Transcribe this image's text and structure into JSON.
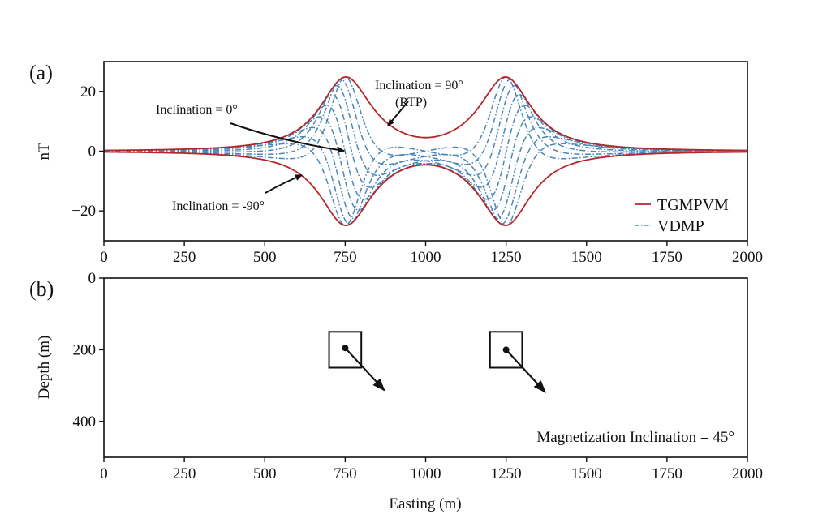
{
  "colors": {
    "tgmpvm": "#b5262b",
    "vdmp": "#4a86b8",
    "axis": "#111111"
  },
  "chart_data": [
    {
      "panel": "(a)",
      "type": "line",
      "xlabel": "",
      "ylabel": "nT",
      "xlim": [
        0,
        2000
      ],
      "ylim": [
        -30,
        30
      ],
      "xticks": [
        "0",
        "250",
        "500",
        "750",
        "1000",
        "1250",
        "1500",
        "1750",
        "2000"
      ],
      "yticks": [
        "20",
        "0",
        "−20"
      ],
      "ytick_values": [
        20,
        0,
        -20
      ],
      "sources": [
        {
          "x": 750,
          "sign": 1
        },
        {
          "x": 1250,
          "sign": -1
        }
      ],
      "peak_amplitude": 24,
      "source_depth": 100,
      "series": [
        {
          "name": "TGMPVM",
          "style": "solid",
          "description_values": "upper and lower envelope, peaks ±24 nT at 750 and 1250"
        },
        {
          "name": "VDMP",
          "style": "dashdot",
          "inclinations": [
            -90,
            -67.5,
            -45,
            -22.5,
            0,
            22.5,
            45,
            67.5,
            90
          ]
        }
      ],
      "legend": [
        "TGMPVM",
        "VDMP"
      ],
      "legend_position": "lower-right",
      "annotations": [
        "Inclination = 90°",
        "(RTP)",
        "Inclination = 0°",
        "Inclination = -90°"
      ]
    },
    {
      "panel": "(b)",
      "type": "scatter",
      "xlabel": "Easting (m)",
      "ylabel": "Depth (m)",
      "xlim": [
        0,
        2000
      ],
      "ylim": [
        500,
        0
      ],
      "xticks": [
        "0",
        "250",
        "500",
        "750",
        "1000",
        "1250",
        "1500",
        "1750",
        "2000"
      ],
      "yticks": [
        "0",
        "200",
        "400"
      ],
      "ytick_values": [
        0,
        200,
        400
      ],
      "bodies": [
        {
          "x_min": 700,
          "x_max": 800,
          "depth_min": 150,
          "depth_max": 250,
          "dipole_x": 750,
          "dipole_depth": 195
        },
        {
          "x_min": 1200,
          "x_max": 1300,
          "depth_min": 150,
          "depth_max": 250,
          "dipole_x": 1250,
          "dipole_depth": 200
        }
      ],
      "annotation": "Magnetization Inclination = 45°"
    }
  ]
}
